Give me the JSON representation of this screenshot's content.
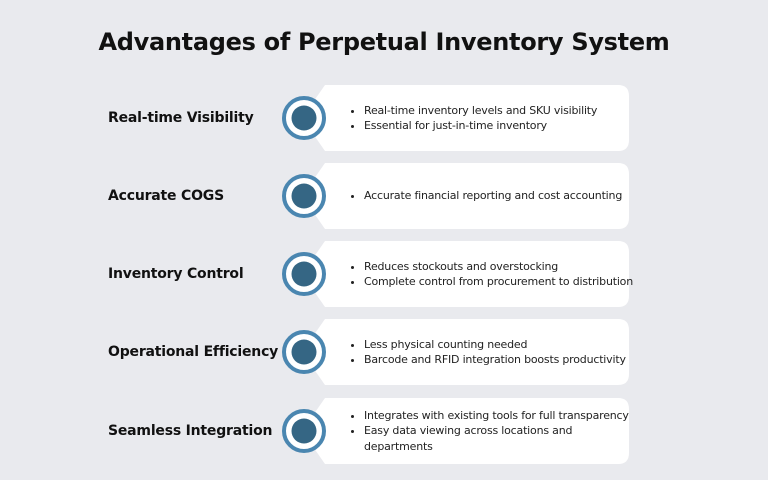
{
  "title": "Advantages of Perpetual Inventory System",
  "colors": {
    "background": "#e9eaee",
    "card": "#ffffff",
    "ring": "#4a86b0",
    "dot": "#356684"
  },
  "items": [
    {
      "label": "Real-time Visibility",
      "icon": "target-circle-icon",
      "bullets": [
        "Real-time inventory levels and SKU visibility",
        "Essential for just-in-time inventory"
      ]
    },
    {
      "label": "Accurate COGS",
      "icon": "target-circle-icon",
      "bullets": [
        "Accurate financial reporting and cost accounting"
      ]
    },
    {
      "label": "Inventory Control",
      "icon": "target-circle-icon",
      "bullets": [
        "Reduces stockouts and overstocking",
        "Complete control from procurement to distribution"
      ]
    },
    {
      "label": "Operational Efficiency",
      "icon": "target-circle-icon",
      "bullets": [
        "Less physical counting needed",
        "Barcode and RFID integration boosts productivity"
      ]
    },
    {
      "label": "Seamless Integration",
      "icon": "target-circle-icon",
      "bullets": [
        "Integrates with existing tools for full transparency",
        "Easy data viewing across locations and departments"
      ]
    }
  ]
}
